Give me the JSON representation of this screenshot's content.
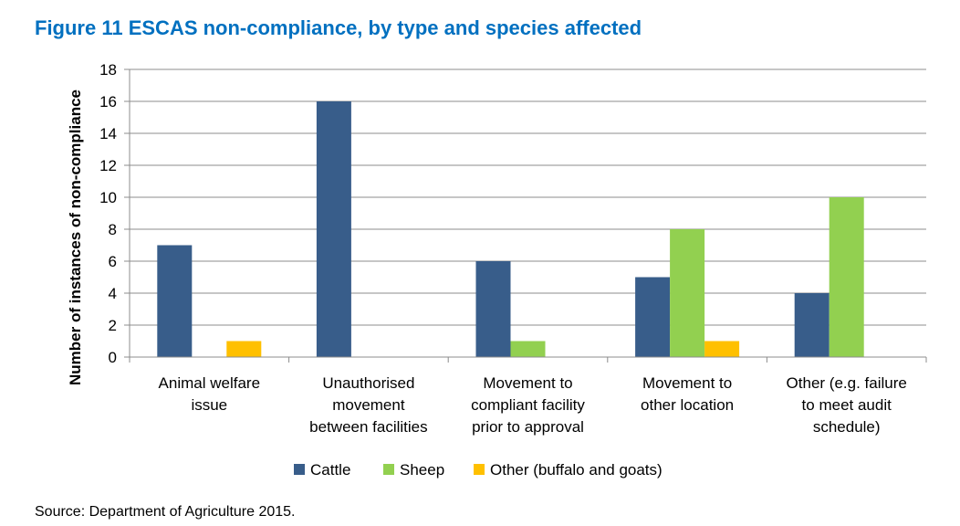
{
  "figure_title": "Figure 11 ESCAS non-compliance, by type and species affected",
  "source": "Source: Department of Agriculture 2015.",
  "chart_data": {
    "type": "bar",
    "title": "Figure 11 ESCAS non-compliance, by type and species affected",
    "xlabel": "",
    "ylabel": "Number of instances of non-compliance",
    "ylim": [
      0,
      18
    ],
    "yticks": [
      0,
      2,
      4,
      6,
      8,
      10,
      12,
      14,
      16,
      18
    ],
    "grid": true,
    "legend_position": "bottom",
    "categories": [
      [
        "Animal welfare",
        "issue"
      ],
      [
        "Unauthorised",
        "movement",
        "between facilities"
      ],
      [
        "Movement to",
        "compliant facility",
        "prior to approval"
      ],
      [
        "Movement to",
        "other location"
      ],
      [
        "Other (e.g. failure",
        "to meet audit",
        "schedule)"
      ]
    ],
    "series": [
      {
        "name": "Cattle",
        "color": "#385d8a",
        "values": [
          7,
          16,
          6,
          5,
          4
        ]
      },
      {
        "name": "Sheep",
        "color": "#92d050",
        "values": [
          0,
          0,
          1,
          8,
          10
        ]
      },
      {
        "name": "Other (buffalo and goats)",
        "color": "#ffc000",
        "values": [
          1,
          0,
          0,
          1,
          0
        ]
      }
    ]
  }
}
